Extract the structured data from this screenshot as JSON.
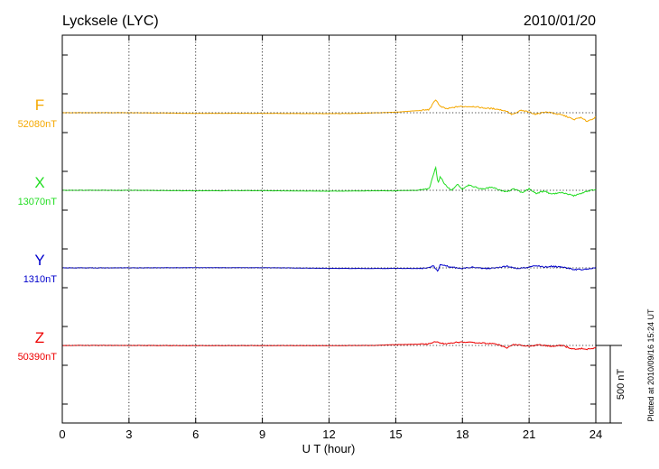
{
  "chart_data": {
    "type": "line",
    "title_left": "Lycksele (LYC)",
    "title_right": "2010/01/20",
    "xlabel": "U T (hour)",
    "xlim": [
      0,
      24
    ],
    "xticks": [
      0,
      3,
      6,
      9,
      12,
      15,
      18,
      21,
      24
    ],
    "xtick_labels": [
      "0",
      "3",
      "6",
      "9",
      "12",
      "15",
      "18",
      "21",
      "24"
    ],
    "grid": true,
    "scale_bar_nT": 500,
    "scale_label": "500 nT",
    "footnote": "Plotted at 2010/09/16 15:24 UT",
    "series": [
      {
        "name": "F",
        "baseline": "52080nT",
        "color": "#f5a800",
        "points": [
          [
            0,
            0
          ],
          [
            3,
            0
          ],
          [
            6,
            -4
          ],
          [
            9,
            -4
          ],
          [
            12,
            -6
          ],
          [
            13,
            -5
          ],
          [
            14,
            -1
          ],
          [
            15,
            3
          ],
          [
            15.5,
            9
          ],
          [
            16,
            13
          ],
          [
            16.5,
            20
          ],
          [
            16.8,
            85
          ],
          [
            17,
            40
          ],
          [
            17.3,
            25
          ],
          [
            17.8,
            40
          ],
          [
            18.5,
            40
          ],
          [
            19,
            30
          ],
          [
            19.5,
            25
          ],
          [
            20,
            10
          ],
          [
            20.2,
            -10
          ],
          [
            20.4,
            -5
          ],
          [
            20.6,
            15
          ],
          [
            21,
            5
          ],
          [
            21.3,
            -10
          ],
          [
            21.7,
            5
          ],
          [
            22,
            0
          ],
          [
            22.3,
            -10
          ],
          [
            22.5,
            -15
          ],
          [
            22.8,
            -30
          ],
          [
            23,
            -45
          ],
          [
            23.3,
            -30
          ],
          [
            23.6,
            -55
          ],
          [
            24,
            -30
          ]
        ]
      },
      {
        "name": "X",
        "baseline": "13070nT",
        "color": "#22dd22",
        "points": [
          [
            0,
            0
          ],
          [
            3,
            0
          ],
          [
            6,
            -3
          ],
          [
            9,
            -2
          ],
          [
            12,
            -6
          ],
          [
            14,
            -3
          ],
          [
            15,
            -3
          ],
          [
            16,
            0
          ],
          [
            16.5,
            10
          ],
          [
            16.8,
            150
          ],
          [
            16.9,
            40
          ],
          [
            17,
            90
          ],
          [
            17.2,
            40
          ],
          [
            17.5,
            0
          ],
          [
            17.8,
            40
          ],
          [
            18,
            5
          ],
          [
            18.3,
            35
          ],
          [
            18.7,
            15
          ],
          [
            19,
            10
          ],
          [
            19.3,
            20
          ],
          [
            19.7,
            0
          ],
          [
            20,
            -10
          ],
          [
            20.3,
            10
          ],
          [
            20.7,
            -15
          ],
          [
            21,
            10
          ],
          [
            21.3,
            -20
          ],
          [
            21.7,
            -5
          ],
          [
            22,
            -25
          ],
          [
            22.5,
            -15
          ],
          [
            23,
            -35
          ],
          [
            23.5,
            -10
          ],
          [
            24,
            5
          ]
        ]
      },
      {
        "name": "Y",
        "baseline": "1310nT",
        "color": "#0000cc",
        "points": [
          [
            0,
            0
          ],
          [
            3,
            0
          ],
          [
            6,
            1
          ],
          [
            9,
            1
          ],
          [
            12,
            -3
          ],
          [
            14,
            -4
          ],
          [
            15,
            -3
          ],
          [
            16,
            -4
          ],
          [
            16.5,
            -1
          ],
          [
            16.7,
            15
          ],
          [
            16.8,
            -10
          ],
          [
            16.9,
            -20
          ],
          [
            17,
            20
          ],
          [
            17.5,
            5
          ],
          [
            18,
            -5
          ],
          [
            18.5,
            5
          ],
          [
            19,
            -5
          ],
          [
            19.5,
            0
          ],
          [
            20,
            10
          ],
          [
            20.5,
            -5
          ],
          [
            21,
            5
          ],
          [
            21.3,
            15
          ],
          [
            21.7,
            5
          ],
          [
            22,
            10
          ],
          [
            22.5,
            5
          ],
          [
            23,
            -10
          ],
          [
            23.5,
            -10
          ],
          [
            24,
            0
          ]
        ]
      },
      {
        "name": "Z",
        "baseline": "50390nT",
        "color": "#ee0000",
        "points": [
          [
            0,
            0
          ],
          [
            3,
            0
          ],
          [
            6,
            -1
          ],
          [
            9,
            -1
          ],
          [
            12,
            -1
          ],
          [
            14,
            0
          ],
          [
            15,
            5
          ],
          [
            16,
            8
          ],
          [
            16.5,
            10
          ],
          [
            16.8,
            25
          ],
          [
            17,
            15
          ],
          [
            17.3,
            10
          ],
          [
            17.7,
            20
          ],
          [
            18,
            20
          ],
          [
            18.5,
            20
          ],
          [
            19,
            15
          ],
          [
            19.5,
            10
          ],
          [
            19.8,
            -5
          ],
          [
            20,
            -15
          ],
          [
            20.3,
            5
          ],
          [
            20.7,
            0
          ],
          [
            21,
            -3
          ],
          [
            21.5,
            3
          ],
          [
            22,
            -5
          ],
          [
            22.5,
            0
          ],
          [
            22.8,
            -15
          ],
          [
            23,
            -25
          ],
          [
            23.3,
            -20
          ],
          [
            23.6,
            -25
          ],
          [
            24,
            -15
          ]
        ]
      }
    ]
  }
}
